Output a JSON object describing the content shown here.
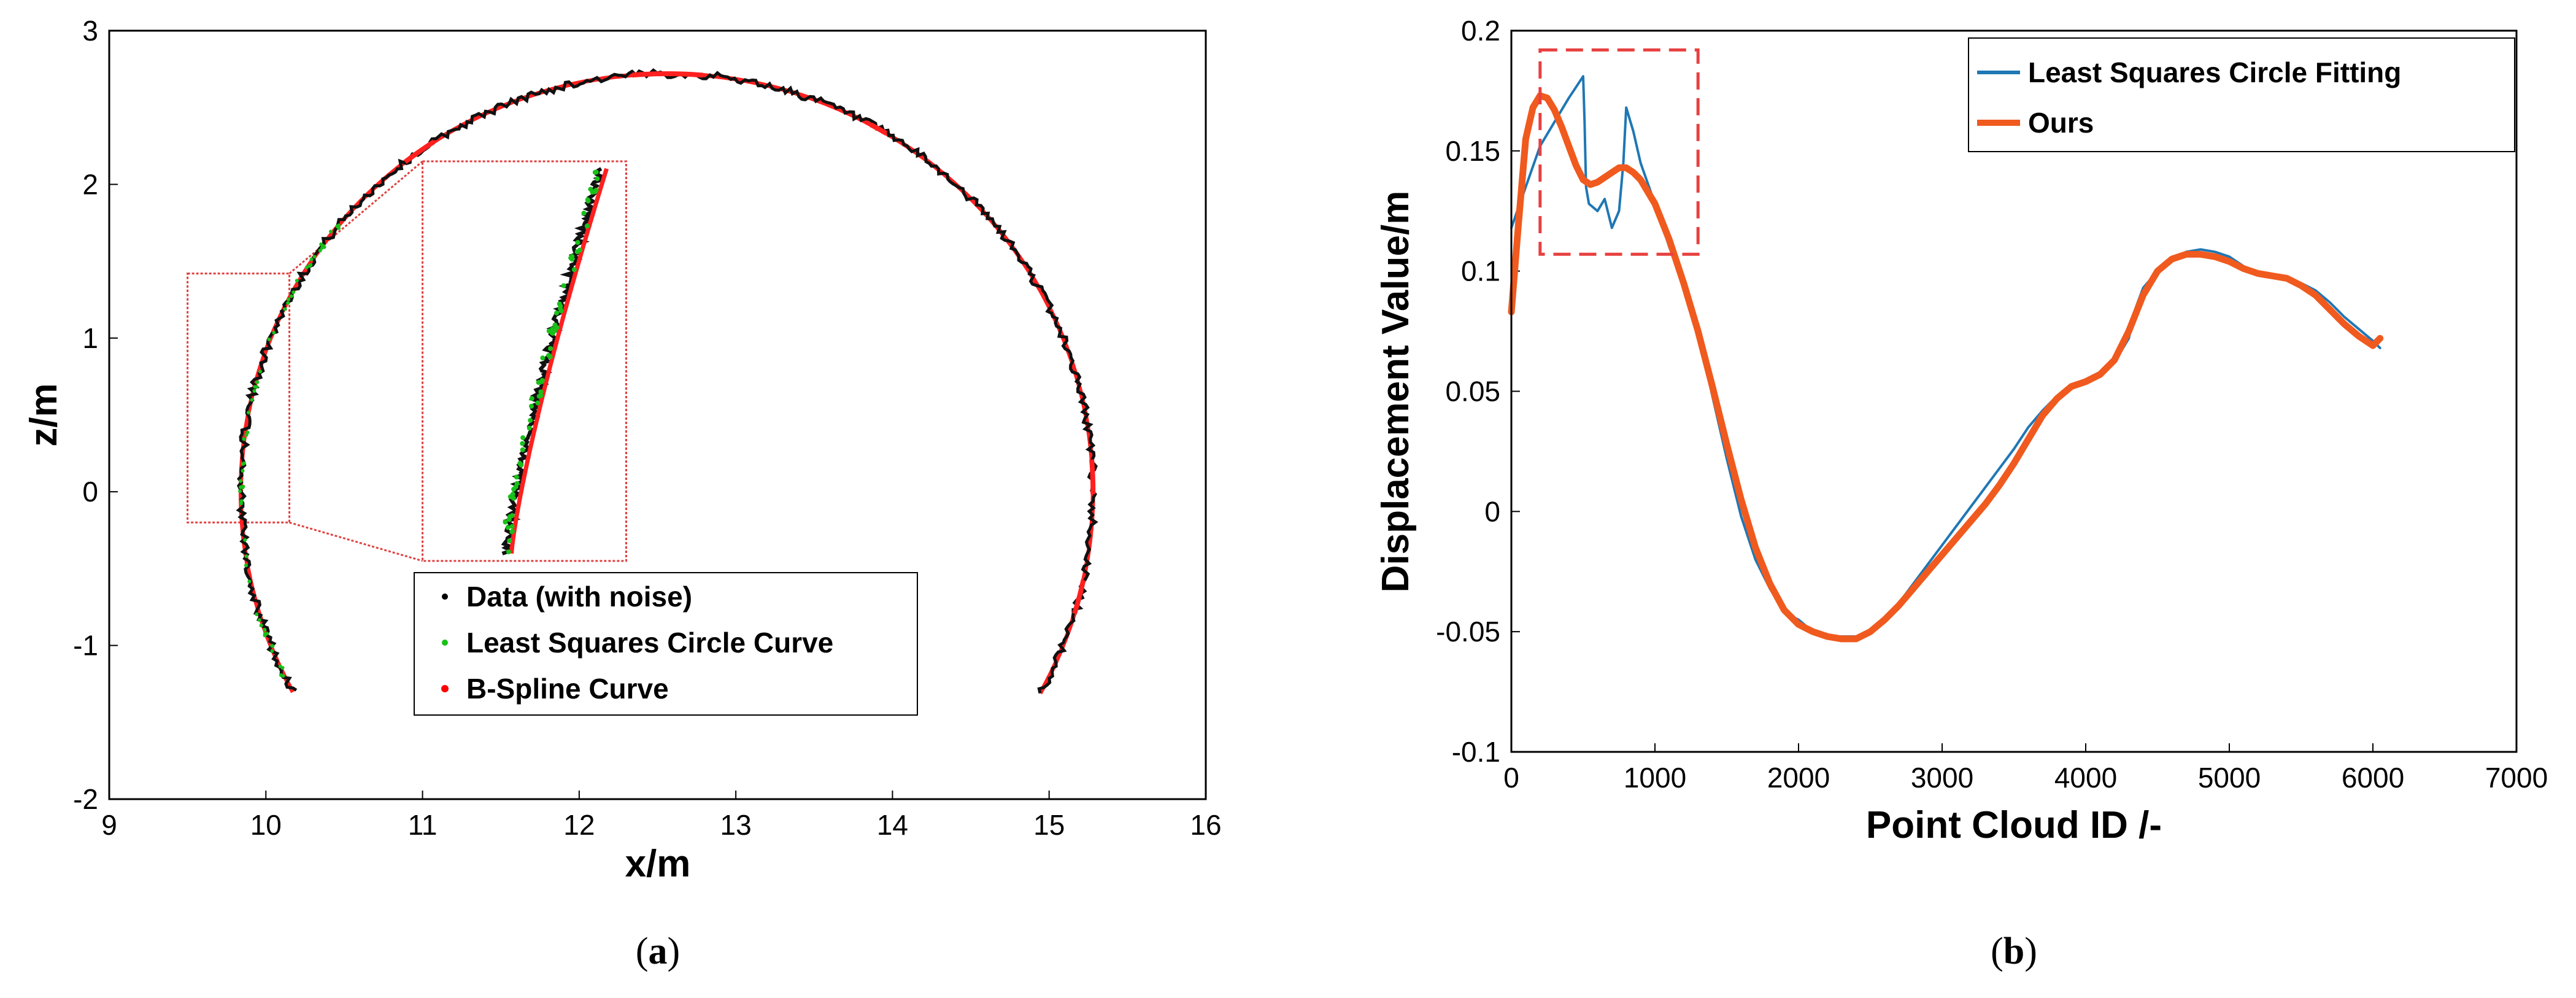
{
  "chart_data": [
    {
      "id": "a",
      "type": "scatter",
      "subfigure_label": "a",
      "xlabel": "x/m",
      "ylabel": "z/m",
      "xlim": [
        9,
        16
      ],
      "ylim": [
        -2,
        3
      ],
      "xticks": [
        "9",
        "10",
        "11",
        "12",
        "13",
        "14",
        "15",
        "16"
      ],
      "yticks": [
        "-2",
        "-1",
        "0",
        "1",
        "2",
        "3"
      ],
      "legend_position": "bottom-center",
      "arc": {
        "center_x": 12.56,
        "center_z": 0,
        "radius": 2.72,
        "left_end": [
          10.05,
          -1.37
        ],
        "right_end": [
          15.05,
          -1.37
        ]
      },
      "zoom_source_box": {
        "x": [
          9.5,
          10.15
        ],
        "z": [
          -0.2,
          1.42
        ]
      },
      "zoom_inset_box": {
        "x": [
          11.0,
          12.3
        ],
        "z": [
          -0.45,
          2.15
        ]
      },
      "series": [
        {
          "name": "Data (with noise)",
          "marker": "dot",
          "color": "#000000"
        },
        {
          "name": "Least Squares Circle Curve",
          "marker": "dot",
          "color": "#19c019"
        },
        {
          "name": "B-Spline Curve",
          "marker": "dot",
          "color": "#ff0000"
        }
      ],
      "legend": [
        "Data (with noise)",
        "Least Squares Circle Curve",
        "B-Spline Curve"
      ]
    },
    {
      "id": "b",
      "type": "line",
      "subfigure_label": "b",
      "xlabel": "Point Cloud ID /-",
      "ylabel": "Displacement Value/m",
      "xlim": [
        0,
        7000
      ],
      "ylim": [
        -0.1,
        0.2
      ],
      "xticks": [
        "0",
        "1000",
        "2000",
        "3000",
        "4000",
        "5000",
        "6000",
        "7000"
      ],
      "yticks": [
        "-0.1",
        "-0.05",
        "0",
        "0.05",
        "0.1",
        "0.15",
        "0.2"
      ],
      "legend_position": "top-right",
      "highlight_box": {
        "x": [
          200,
          1300
        ],
        "y": [
          0.107,
          0.192
        ]
      },
      "series": [
        {
          "name": "Least Squares Circle Fitting",
          "color": "#1f77b4",
          "x": [
            0,
            100,
            200,
            300,
            400,
            500,
            510,
            520,
            540,
            600,
            650,
            700,
            750,
            780,
            800,
            850,
            900,
            1000,
            1100,
            1200,
            1300,
            1400,
            1500,
            1600,
            1700,
            1800,
            1900,
            2000,
            2100,
            2200,
            2300,
            2400,
            2500,
            2600,
            2700,
            2800,
            2900,
            3000,
            3100,
            3200,
            3300,
            3400,
            3500,
            3600,
            3700,
            3800,
            3900,
            4000,
            4100,
            4200,
            4300,
            4350,
            4400,
            4500,
            4600,
            4700,
            4800,
            4900,
            5000,
            5100,
            5200,
            5300,
            5400,
            5500,
            5600,
            5700,
            5800,
            5900,
            6000,
            6050
          ],
          "y": [
            0.118,
            0.135,
            0.152,
            0.162,
            0.172,
            0.181,
            0.162,
            0.135,
            0.128,
            0.125,
            0.13,
            0.118,
            0.125,
            0.145,
            0.168,
            0.158,
            0.145,
            0.128,
            0.11,
            0.095,
            0.075,
            0.048,
            0.022,
            -0.002,
            -0.02,
            -0.032,
            -0.042,
            -0.045,
            -0.05,
            -0.052,
            -0.052,
            -0.052,
            -0.05,
            -0.045,
            -0.038,
            -0.03,
            -0.022,
            -0.014,
            -0.006,
            0.002,
            0.01,
            0.018,
            0.026,
            0.035,
            0.042,
            0.048,
            0.052,
            0.055,
            0.058,
            0.062,
            0.072,
            0.085,
            0.093,
            0.1,
            0.105,
            0.108,
            0.109,
            0.108,
            0.106,
            0.102,
            0.099,
            0.098,
            0.097,
            0.095,
            0.092,
            0.087,
            0.081,
            0.076,
            0.071,
            0.068
          ]
        },
        {
          "name": "Ours",
          "color": "#f05a1e",
          "x": [
            0,
            50,
            100,
            150,
            200,
            250,
            300,
            350,
            400,
            450,
            500,
            550,
            600,
            650,
            700,
            750,
            800,
            850,
            900,
            1000,
            1100,
            1200,
            1300,
            1400,
            1500,
            1600,
            1700,
            1800,
            1900,
            2000,
            2100,
            2200,
            2300,
            2400,
            2500,
            2600,
            2700,
            2800,
            2900,
            3000,
            3100,
            3200,
            3300,
            3400,
            3500,
            3600,
            3700,
            3800,
            3900,
            4000,
            4100,
            4200,
            4300,
            4400,
            4500,
            4600,
            4700,
            4800,
            4900,
            5000,
            5100,
            5200,
            5300,
            5400,
            5500,
            5600,
            5700,
            5800,
            5900,
            6000,
            6050
          ],
          "y": [
            0.083,
            0.12,
            0.155,
            0.168,
            0.173,
            0.172,
            0.167,
            0.16,
            0.152,
            0.144,
            0.138,
            0.136,
            0.137,
            0.139,
            0.141,
            0.143,
            0.143,
            0.141,
            0.138,
            0.128,
            0.113,
            0.095,
            0.075,
            0.052,
            0.028,
            0.005,
            -0.015,
            -0.03,
            -0.041,
            -0.047,
            -0.05,
            -0.052,
            -0.053,
            -0.053,
            -0.05,
            -0.045,
            -0.039,
            -0.032,
            -0.025,
            -0.018,
            -0.011,
            -0.004,
            0.003,
            0.011,
            0.02,
            0.03,
            0.04,
            0.047,
            0.052,
            0.054,
            0.057,
            0.063,
            0.075,
            0.09,
            0.1,
            0.105,
            0.107,
            0.107,
            0.106,
            0.104,
            0.101,
            0.099,
            0.098,
            0.097,
            0.094,
            0.09,
            0.084,
            0.078,
            0.073,
            0.069,
            0.072
          ]
        }
      ],
      "legend": [
        "Least Squares Circle Fitting",
        "Ours"
      ]
    }
  ]
}
